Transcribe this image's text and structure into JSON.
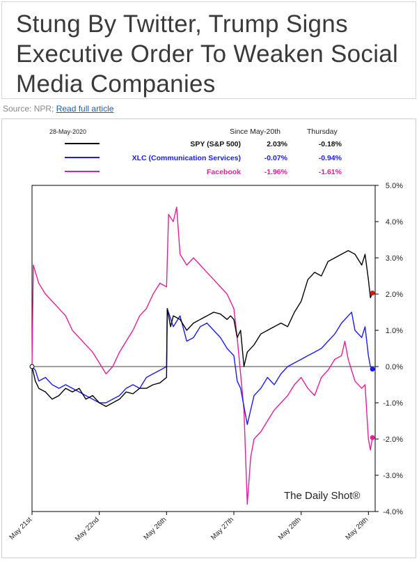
{
  "article": {
    "headline": "Stung By Twitter, Trump Signs Executive Order To Weaken Social Media Companies",
    "source_prefix": "Source: NPR; ",
    "read_more": "Read full article"
  },
  "colors": {
    "spy": "#000000",
    "xlc": "#1a1aff",
    "facebook": "#e0209a",
    "end_marker_fb": "#e0209a"
  },
  "chart_data": {
    "type": "line",
    "date_label": "28-May-2020",
    "table_headers": [
      "Since May-20th",
      "Thursday"
    ],
    "series": [
      {
        "name": "SPY (S&P 500)",
        "key": "spy",
        "since": "2.03%",
        "thursday": "-0.18%",
        "values": [
          [
            0,
            0
          ],
          [
            0.5,
            -0.4
          ],
          [
            1,
            -0.6
          ],
          [
            2,
            -0.7
          ],
          [
            3,
            -0.9
          ],
          [
            4,
            -0.8
          ],
          [
            5,
            -0.6
          ],
          [
            6,
            -0.7
          ],
          [
            7,
            -0.6
          ],
          [
            8,
            -0.9
          ],
          [
            9,
            -0.8
          ],
          [
            10,
            -1.0
          ],
          [
            11,
            -1.1
          ],
          [
            12,
            -1.0
          ],
          [
            13,
            -0.9
          ],
          [
            14,
            -0.7
          ],
          [
            15,
            -0.75
          ],
          [
            16,
            -0.6
          ],
          [
            17,
            -0.6
          ],
          [
            18,
            -0.5
          ],
          [
            19,
            -0.45
          ],
          [
            20,
            -0.3
          ],
          [
            20.1,
            1.6
          ],
          [
            20.6,
            1.1
          ],
          [
            21,
            1.4
          ],
          [
            22,
            1.3
          ],
          [
            23,
            1.0
          ],
          [
            24,
            1.2
          ],
          [
            25,
            1.3
          ],
          [
            26,
            1.4
          ],
          [
            27,
            1.5
          ],
          [
            28,
            1.45
          ],
          [
            29,
            1.3
          ],
          [
            29.5,
            1.4
          ],
          [
            30,
            1.3
          ],
          [
            30.5,
            0.8
          ],
          [
            31,
            1.0
          ],
          [
            31.5,
            0.0
          ],
          [
            32,
            0.4
          ],
          [
            33,
            0.6
          ],
          [
            34,
            0.9
          ],
          [
            35,
            1.0
          ],
          [
            36,
            1.1
          ],
          [
            37,
            1.2
          ],
          [
            38,
            1.1
          ],
          [
            39,
            1.5
          ],
          [
            40,
            1.8
          ],
          [
            41,
            2.4
          ],
          [
            42,
            2.6
          ],
          [
            43,
            2.5
          ],
          [
            44,
            2.9
          ],
          [
            45,
            3.0
          ],
          [
            46,
            3.1
          ],
          [
            47,
            3.2
          ],
          [
            48,
            3.1
          ],
          [
            49,
            2.8
          ],
          [
            49.5,
            3.1
          ],
          [
            50,
            2.4
          ],
          [
            50.3,
            1.9
          ],
          [
            50.6,
            2.03
          ]
        ]
      },
      {
        "name": "XLC (Communication Services)",
        "key": "xlc",
        "since": "-0.07%",
        "thursday": "-0.94%",
        "values": [
          [
            0,
            0
          ],
          [
            0.5,
            -0.1
          ],
          [
            1,
            -0.4
          ],
          [
            2,
            -0.3
          ],
          [
            3,
            -0.5
          ],
          [
            4,
            -0.6
          ],
          [
            5,
            -0.5
          ],
          [
            6,
            -0.6
          ],
          [
            7,
            -0.7
          ],
          [
            8,
            -0.8
          ],
          [
            9,
            -0.9
          ],
          [
            10,
            -1.0
          ],
          [
            11,
            -1.0
          ],
          [
            12,
            -0.9
          ],
          [
            13,
            -0.8
          ],
          [
            14,
            -0.6
          ],
          [
            15,
            -0.5
          ],
          [
            16,
            -0.6
          ],
          [
            17,
            -0.3
          ],
          [
            18,
            -0.2
          ],
          [
            19,
            -0.1
          ],
          [
            20,
            0.0
          ],
          [
            20.1,
            1.6
          ],
          [
            21,
            1.1
          ],
          [
            22,
            1.4
          ],
          [
            23,
            0.7
          ],
          [
            24,
            0.8
          ],
          [
            25,
            1.1
          ],
          [
            26,
            1.2
          ],
          [
            27,
            1.0
          ],
          [
            28,
            0.8
          ],
          [
            29,
            0.5
          ],
          [
            30,
            0.3
          ],
          [
            30.5,
            -0.4
          ],
          [
            31,
            -0.6
          ],
          [
            32,
            -1.6
          ],
          [
            33,
            -0.8
          ],
          [
            34,
            -0.6
          ],
          [
            35,
            -0.3
          ],
          [
            36,
            -0.5
          ],
          [
            37,
            -0.2
          ],
          [
            38,
            0.0
          ],
          [
            39,
            0.1
          ],
          [
            40,
            0.2
          ],
          [
            41,
            0.3
          ],
          [
            42,
            0.4
          ],
          [
            43,
            0.5
          ],
          [
            44,
            0.7
          ],
          [
            45,
            0.9
          ],
          [
            46,
            1.2
          ],
          [
            47,
            1.4
          ],
          [
            47.5,
            1.5
          ],
          [
            48,
            1.0
          ],
          [
            49,
            0.8
          ],
          [
            49.5,
            1.1
          ],
          [
            50,
            0.3
          ],
          [
            50.3,
            0.0
          ],
          [
            50.6,
            -0.07
          ]
        ]
      },
      {
        "name": "Facebook",
        "key": "facebook",
        "since": "-1.96%",
        "thursday": "-1.61%",
        "values": [
          [
            0,
            0
          ],
          [
            0.2,
            2.8
          ],
          [
            1,
            2.3
          ],
          [
            2,
            2.0
          ],
          [
            3,
            1.8
          ],
          [
            4,
            1.6
          ],
          [
            5,
            1.4
          ],
          [
            6,
            1.0
          ],
          [
            7,
            0.8
          ],
          [
            8,
            0.6
          ],
          [
            9,
            0.4
          ],
          [
            10,
            0.1
          ],
          [
            11,
            -0.2
          ],
          [
            12,
            0.0
          ],
          [
            13,
            0.4
          ],
          [
            14,
            0.7
          ],
          [
            15,
            1.0
          ],
          [
            16,
            1.4
          ],
          [
            17,
            1.6
          ],
          [
            18,
            2.0
          ],
          [
            19,
            2.3
          ],
          [
            20,
            2.2
          ],
          [
            20.3,
            4.2
          ],
          [
            21,
            4.0
          ],
          [
            21.5,
            4.4
          ],
          [
            22,
            3.1
          ],
          [
            23,
            2.8
          ],
          [
            24,
            3.0
          ],
          [
            25,
            2.8
          ],
          [
            26,
            2.6
          ],
          [
            27,
            2.4
          ],
          [
            28,
            2.2
          ],
          [
            29,
            2.0
          ],
          [
            30,
            1.6
          ],
          [
            30.5,
            0.8
          ],
          [
            31,
            -0.2
          ],
          [
            31.5,
            -1.2
          ],
          [
            32,
            -3.8
          ],
          [
            32.5,
            -2.5
          ],
          [
            33,
            -2.0
          ],
          [
            34,
            -1.8
          ],
          [
            35,
            -1.5
          ],
          [
            36,
            -1.2
          ],
          [
            37,
            -1.0
          ],
          [
            38,
            -0.8
          ],
          [
            39,
            -0.5
          ],
          [
            40,
            -0.3
          ],
          [
            41,
            -0.6
          ],
          [
            42,
            -0.8
          ],
          [
            43,
            -0.3
          ],
          [
            44,
            -0.1
          ],
          [
            45,
            0.2
          ],
          [
            46,
            0.3
          ],
          [
            46.5,
            0.7
          ],
          [
            47,
            0.2
          ],
          [
            48,
            -0.4
          ],
          [
            49,
            -0.6
          ],
          [
            49.5,
            -0.5
          ],
          [
            50,
            -2.0
          ],
          [
            50.3,
            -2.3
          ],
          [
            50.6,
            -1.96
          ]
        ]
      }
    ],
    "x_ticks": [
      "May 21st",
      "May 22nd",
      "May 26th",
      "May 27th",
      "May 28th",
      "May 29th"
    ],
    "x_tick_positions": [
      0,
      10,
      20,
      30,
      40,
      50
    ],
    "x_range": [
      0,
      51
    ],
    "y_ticks": [
      5.0,
      4.0,
      3.0,
      2.0,
      1.0,
      0.0,
      -1.0,
      -2.0,
      -3.0,
      -4.0
    ],
    "y_tick_labels": [
      "5.0%",
      "4.0%",
      "3.0%",
      "2.0%",
      "1.0%",
      "0.0%",
      "-1.0%",
      "-2.0%",
      "-3.0%",
      "-4.0%"
    ],
    "ylim": [
      -4.0,
      5.0
    ],
    "grid": false,
    "watermark": "The Daily Shot®"
  }
}
